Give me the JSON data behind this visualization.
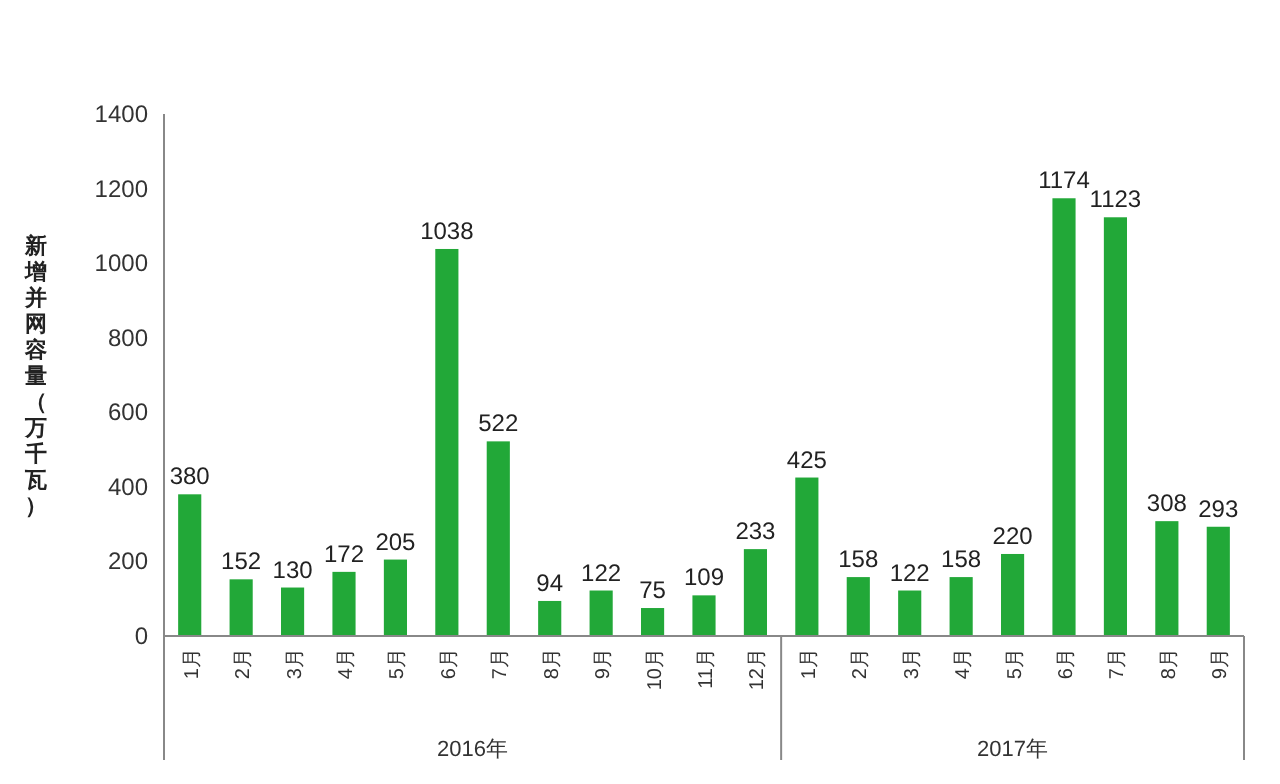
{
  "chart_data": {
    "type": "bar",
    "ylabel": "新增并网容量（万千瓦）",
    "categories": [
      "1月",
      "2月",
      "3月",
      "4月",
      "5月",
      "6月",
      "7月",
      "8月",
      "9月",
      "10月",
      "11月",
      "12月",
      "1月",
      "2月",
      "3月",
      "4月",
      "5月",
      "6月",
      "7月",
      "8月",
      "9月"
    ],
    "values": [
      380,
      152,
      130,
      172,
      205,
      1038,
      522,
      94,
      122,
      75,
      109,
      233,
      425,
      158,
      122,
      158,
      220,
      1174,
      1123,
      308,
      293
    ],
    "color": "#22a838",
    "ylim": [
      0,
      1400
    ],
    "yticks": [
      0,
      200,
      400,
      600,
      800,
      1000,
      1200,
      1400
    ],
    "data_labels": true,
    "grid": false,
    "annotations": [
      "2016年",
      "2017年"
    ]
  }
}
